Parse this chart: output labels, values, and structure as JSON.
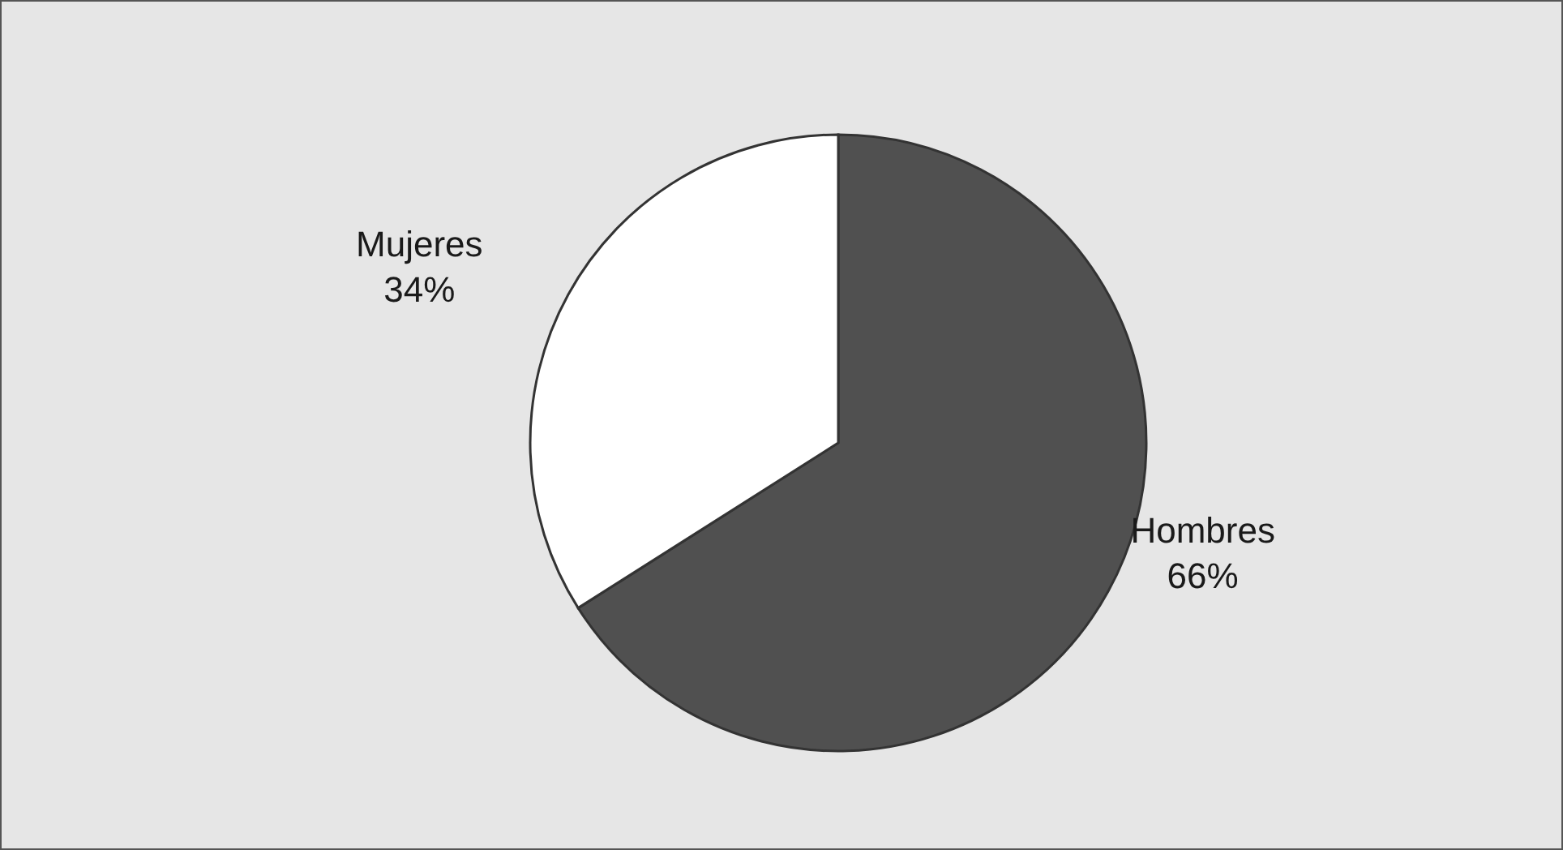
{
  "chart_data": {
    "type": "pie",
    "categories": [
      "Hombres",
      "Mujeres"
    ],
    "values": [
      66,
      34
    ],
    "colors": [
      "#505050",
      "#ffffff"
    ],
    "value_labels": [
      "66%",
      "34%"
    ]
  }
}
